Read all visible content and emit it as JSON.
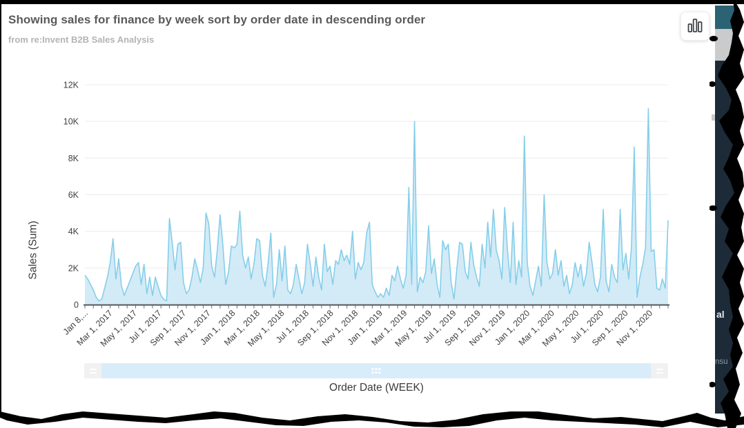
{
  "header": {
    "title": "Showing sales for finance by week sort by order date in descending order",
    "subtitle": "from re:Invent B2B Sales Analysis"
  },
  "toolbar": {
    "chart_type_button": "bar-chart-icon"
  },
  "chart_data": {
    "type": "area",
    "title": "Showing sales for finance by week sort by order date in descending order",
    "xlabel": "Order Date (WEEK)",
    "ylabel": "Sales (Sum)",
    "ylim": [
      0,
      12000
    ],
    "y_ticks": [
      "0",
      "2K",
      "4K",
      "6K",
      "8K",
      "10K",
      "12K"
    ],
    "x_tick_labels": [
      "Jan 8,...",
      "Mar 1, 2017",
      "May 1, 2017",
      "Jul 1, 2017",
      "Sep 1, 2017",
      "Nov 1, 2017",
      "Jan 1, 2018",
      "Mar 1, 2018",
      "May 1, 2018",
      "Jul 1, 2018",
      "Sep 1, 2018",
      "Nov 1, 2018",
      "Jan 1, 2019",
      "Mar 1, 2019",
      "May 1, 2019",
      "Jul 1, 2019",
      "Sep 1, 2019",
      "Nov 1, 2019",
      "Jan 1, 2020",
      "Mar 1, 2020",
      "May 1, 2020",
      "Jul 1, 2020",
      "Sep 1, 2020",
      "Nov 1, 2020"
    ],
    "x_unit": "week",
    "x_start": "Jan 8, 2017",
    "grid": true,
    "legend": false,
    "series": [
      {
        "name": "Sales (Sum)",
        "values": [
          1600,
          1400,
          1100,
          800,
          400,
          200,
          300,
          900,
          1500,
          2300,
          3600,
          1400,
          2500,
          1000,
          500,
          900,
          1300,
          1700,
          2100,
          2300,
          1100,
          2200,
          600,
          1500,
          500,
          1500,
          1000,
          500,
          300,
          200,
          4700,
          3400,
          1900,
          3300,
          3400,
          1200,
          600,
          800,
          1500,
          2500,
          1900,
          1200,
          2000,
          5000,
          4400,
          2100,
          1500,
          3000,
          4900,
          3200,
          1100,
          1800,
          3200,
          3100,
          3300,
          5100,
          2700,
          2000,
          2600,
          1400,
          2200,
          3600,
          3500,
          1600,
          1000,
          2200,
          3900,
          400,
          1100,
          3000,
          1300,
          3200,
          800,
          600,
          1100,
          2200,
          1400,
          600,
          1200,
          3300,
          2200,
          1000,
          2600,
          1500,
          800,
          3300,
          1800,
          2100,
          1100,
          2400,
          2200,
          3000,
          2400,
          2700,
          2200,
          4000,
          1400,
          2300,
          1900,
          2300,
          3900,
          4500,
          1100,
          700,
          400,
          600,
          400,
          900,
          500,
          1600,
          1300,
          2100,
          1400,
          900,
          1600,
          6400,
          1100,
          10000,
          700,
          1500,
          1200,
          1800,
          4300,
          1700,
          2500,
          1100,
          400,
          3500,
          3000,
          3300,
          1200,
          300,
          1900,
          3400,
          3300,
          1800,
          1400,
          3400,
          2200,
          1500,
          1000,
          3300,
          2000,
          4500,
          2600,
          5200,
          3000,
          2400,
          1400,
          5300,
          3000,
          1200,
          4500,
          1100,
          2400,
          1500,
          9200,
          2300,
          1000,
          500,
          1300,
          2100,
          1000,
          6000,
          2300,
          1400,
          1700,
          3000,
          1600,
          2400,
          1000,
          1600,
          600,
          1100,
          2300,
          1500,
          2200,
          1000,
          1700,
          3400,
          2300,
          1100,
          700,
          1500,
          5200,
          1300,
          700,
          2200,
          1500,
          1200,
          5200,
          1900,
          2800,
          1400,
          3100,
          8600,
          400,
          1500,
          2200,
          3100,
          10700,
          2900,
          3000,
          900,
          800,
          1400,
          900,
          4600
        ]
      }
    ],
    "colors": {
      "area_fill": "#cbe7f6",
      "area_stroke": "#85cee9",
      "gridline": "#ececec",
      "axis": "#53575b",
      "tick_label": "#3f3f3f"
    }
  },
  "scrollbar": {
    "left_handle_icon": "drag-handle-icon",
    "right_handle_icon": "drag-handle-icon",
    "center_grip_icon": "grip-dots-icon"
  },
  "torn_edge": {
    "fragments": [
      {
        "text": "al"
      },
      {
        "text": "nsu"
      }
    ],
    "colors": {
      "teal": "#2b6274",
      "gray": "#c9cbcc",
      "navy": "#1d2b38"
    }
  }
}
